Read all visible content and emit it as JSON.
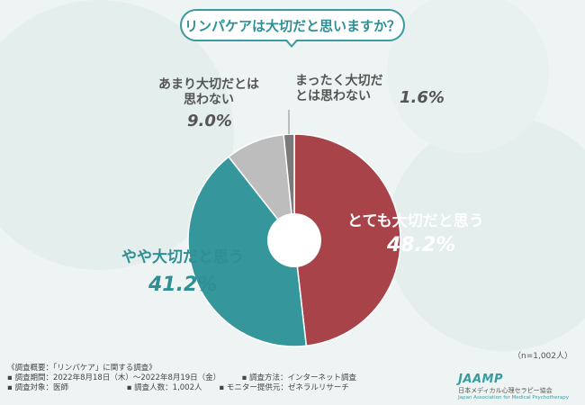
{
  "title": "リンパケアは大切だと思いますか？",
  "sample_size": "（n=1,002人）",
  "chart_data": {
    "type": "pie",
    "start_angle_deg": 0,
    "direction": "clockwise",
    "donut_hole": true,
    "slices": [
      {
        "label": "とても大切だと思う",
        "value": 48.2,
        "display": "48.2%",
        "color": "#a8434a"
      },
      {
        "label": "やや大切だと思う",
        "value": 41.2,
        "display": "41.2%",
        "color": "#35969b"
      },
      {
        "label": "あまり大切だとは思わない",
        "value": 9.0,
        "display": "9.0%",
        "color": "#bdbdbd"
      },
      {
        "label": "まったく大切だとは思わない",
        "value": 1.6,
        "display": "1.6%",
        "color": "#7a7a7a"
      }
    ]
  },
  "labels": {
    "s0": "とても大切だと思う",
    "s1": "やや大切だと思う",
    "s2_l1": "あまり大切だとは",
    "s2_l2": "思わない",
    "s3_l1": "まったく大切だ",
    "s3_l2": "とは思わない"
  },
  "footer": {
    "summary": "《調査概要：「リンパケア」に関する調査》",
    "period": "▪ 調査期間：2022年8月18日（木）～2022年8月19日（金）",
    "method": "▪ 調査方法：インターネット調査",
    "target": "▪ 調査対象：医師",
    "count": "▪ 調査人数：1,002人",
    "provider": "▪ モニター提供元：ゼネラルリサーチ"
  },
  "logo": {
    "mark": "JAAMP",
    "name_jp": "日本メディカル心理セラピー協会",
    "name_en": "Japan Association for Medical Psychotherapy"
  }
}
